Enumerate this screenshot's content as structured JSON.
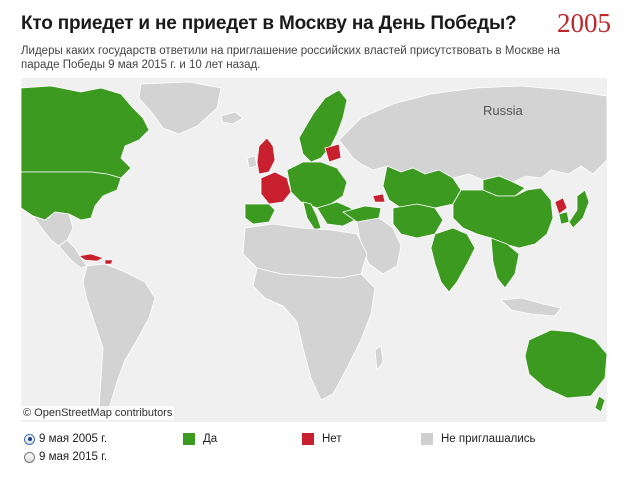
{
  "header": {
    "title": "Кто приедет и не приедет в Москву на День Победы?",
    "year": "2005"
  },
  "subtitle": "Лидеры каких государств ответили на приглашение российских властей присутствовать в Москве на параде Победы 9 мая 2015 г. и 10 лет назад.",
  "map": {
    "label_russia": "Russia",
    "attribution": "© OpenStreetMap contributors",
    "colors": {
      "yes": "#3b9a1f",
      "no": "#c8202f",
      "not_invited": "#d3d3d3",
      "water": "#f0f0f0",
      "border": "#ffffff"
    }
  },
  "controls": {
    "options": [
      {
        "label": "9 мая 2005 г.",
        "selected": true
      },
      {
        "label": "9 мая 2015 г.",
        "selected": false
      }
    ]
  },
  "legend": {
    "yes": {
      "label": "Да",
      "color": "#3b9a1f"
    },
    "no": {
      "label": "Нет",
      "color": "#c8202f"
    },
    "not_invited": {
      "label": "Не приглашались",
      "color": "#cfcfcf"
    }
  }
}
